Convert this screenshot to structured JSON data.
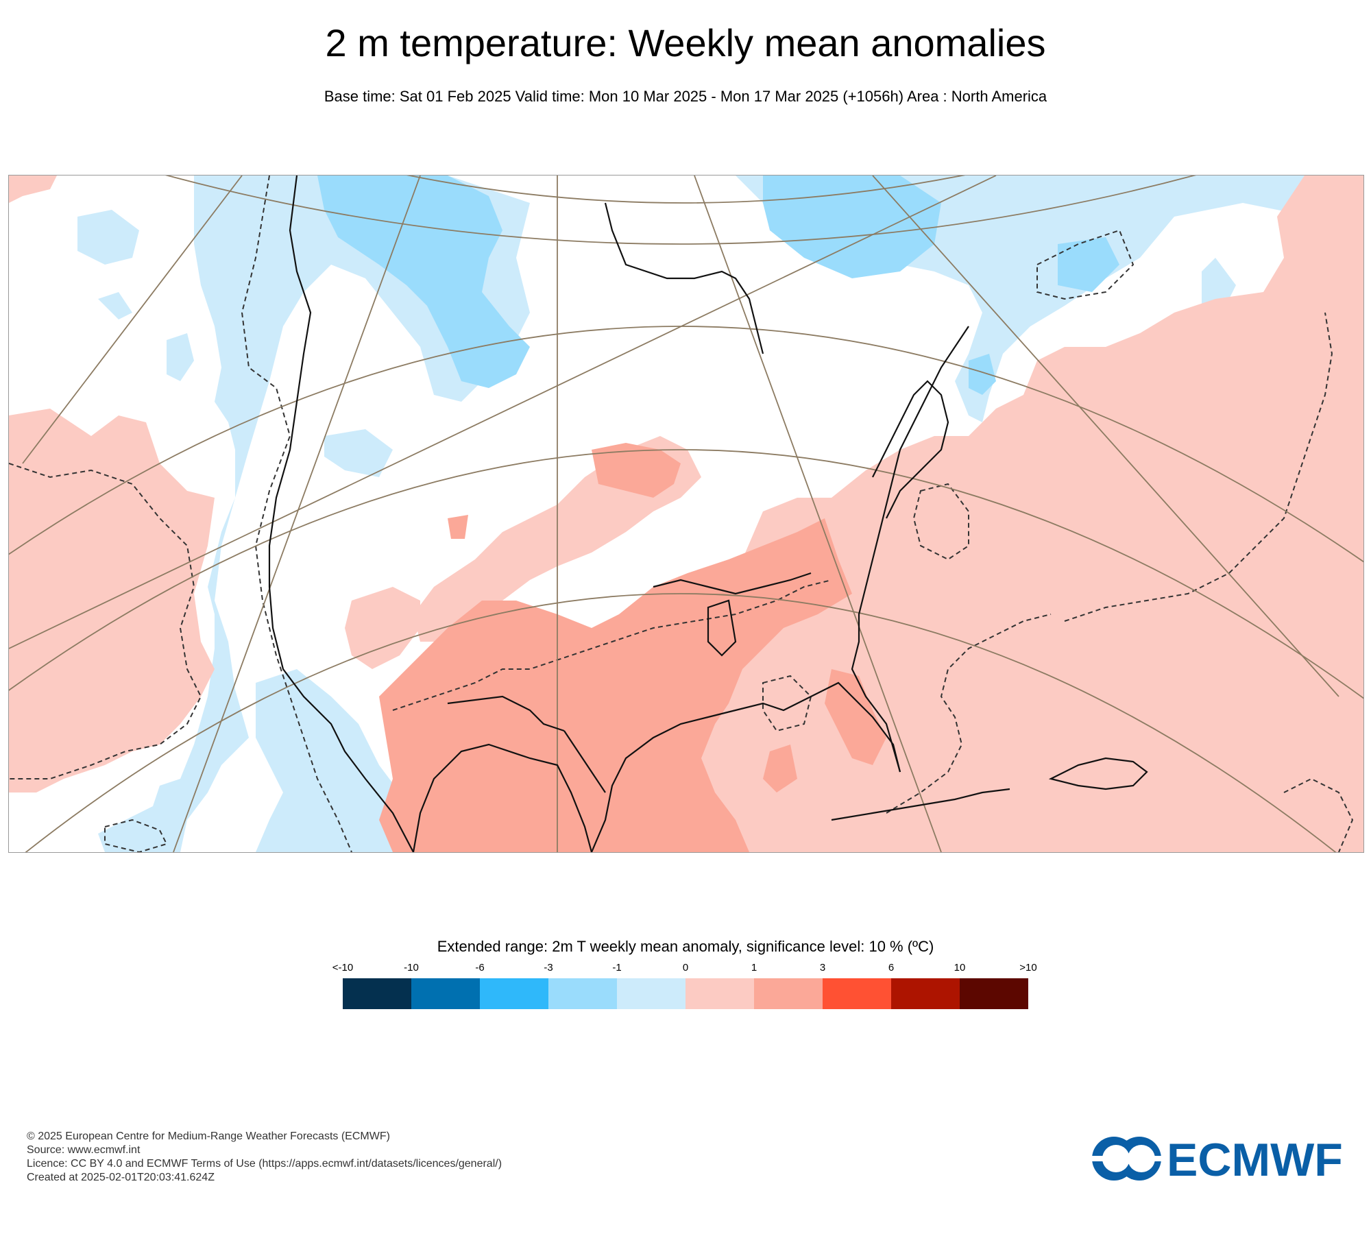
{
  "header": {
    "title": "2 m temperature: Weekly mean anomalies",
    "subtitle": "Base time: Sat 01 Feb 2025 Valid time: Mon 10 Mar 2025 - Mon 17 Mar 2025 (+1056h) Area : North America"
  },
  "map": {
    "area": "North America",
    "significance_contour": "dashed"
  },
  "legend": {
    "title": "Extended range: 2m T weekly mean anomaly, significance level: 10 % (ºC)",
    "labels": [
      "<-10",
      "-10",
      "-6",
      "-3",
      "-1",
      "0",
      "1",
      "3",
      "6",
      "10",
      ">10"
    ],
    "colors": [
      "#04304f",
      "#0070b0",
      "#2fb8fa",
      "#9adcfc",
      "#cdebfb",
      "#fccbc3",
      "#fba898",
      "#ff5133",
      "#ad1400",
      "#5c0700"
    ]
  },
  "footer": {
    "lines": [
      "© 2025 European Centre for Medium-Range Weather Forecasts (ECMWF)",
      "Source: www.ecmwf.int",
      "Licence: CC BY 4.0 and ECMWF Terms of Use (https://apps.ecmwf.int/datasets/licences/general/)",
      "Created at 2025-02-01T20:03:41.624Z"
    ]
  },
  "logo": {
    "text": "ECMWF",
    "color": "#0a5fa7"
  }
}
